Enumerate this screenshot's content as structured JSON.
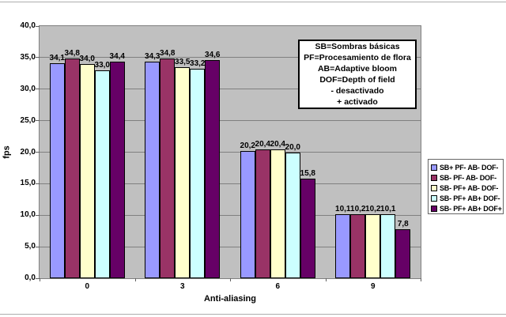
{
  "chart_data": {
    "type": "bar",
    "title": "",
    "xlabel": "Anti-aliasing",
    "ylabel": "fps",
    "ylim": [
      0,
      40
    ],
    "grid": true,
    "legend_position": "right",
    "categories": [
      "0",
      "3",
      "6",
      "9"
    ],
    "y_ticks": [
      {
        "v": 0,
        "label": "0,0"
      },
      {
        "v": 5,
        "label": "5,0"
      },
      {
        "v": 10,
        "label": "10,0"
      },
      {
        "v": 15,
        "label": "15,0"
      },
      {
        "v": 20,
        "label": "20,0"
      },
      {
        "v": 25,
        "label": "25,0"
      },
      {
        "v": 30,
        "label": "30,0"
      },
      {
        "v": 35,
        "label": "35,0"
      },
      {
        "v": 40,
        "label": "40,0"
      }
    ],
    "series": [
      {
        "name": "SB+ PF- AB- DOF-",
        "color": "#9999FF",
        "values": [
          34.1,
          34.3,
          20.2,
          10.1
        ],
        "labels": [
          "34,1",
          "34,3",
          "20,2",
          "10,1"
        ]
      },
      {
        "name": "SB- PF- AB- DOF-",
        "color": "#993366",
        "values": [
          34.8,
          34.8,
          20.4,
          10.2
        ],
        "labels": [
          "34,8",
          "34,8",
          "20,4",
          "10,2"
        ]
      },
      {
        "name": "SB- PF+ AB- DOF-",
        "color": "#FFFFCC",
        "values": [
          34.0,
          33.5,
          20.4,
          10.2
        ],
        "labels": [
          "34,0",
          "33,5",
          "20,4",
          "10,2"
        ]
      },
      {
        "name": "SB- PF+ AB+ DOF-",
        "color": "#CCFFFF",
        "values": [
          33.0,
          33.2,
          20.0,
          10.1
        ],
        "labels": [
          "33,0",
          "33,2",
          "20,0",
          "10,1"
        ]
      },
      {
        "name": "SB- PF+ AB+ DOF+",
        "color": "#660066",
        "values": [
          34.4,
          34.6,
          15.8,
          7.8
        ],
        "labels": [
          "34,4",
          "34,6",
          "15,8",
          "7,8"
        ]
      }
    ]
  },
  "info_box": {
    "lines": [
      "SB=Sombras básicas",
      "PF=Procesamiento de flora",
      "AB=Adaptive bloom",
      "DOF=Depth of field",
      "- desactivado",
      "+ activado"
    ]
  },
  "colors": {
    "plot_bg": "#C0C0C0",
    "gridline": "#808080",
    "plot_border": "#808080",
    "axis": "#606060",
    "bar_border": "#000000",
    "frame_line": "#ADADAD",
    "legend_border": "#666666",
    "info_border": "#000000"
  }
}
